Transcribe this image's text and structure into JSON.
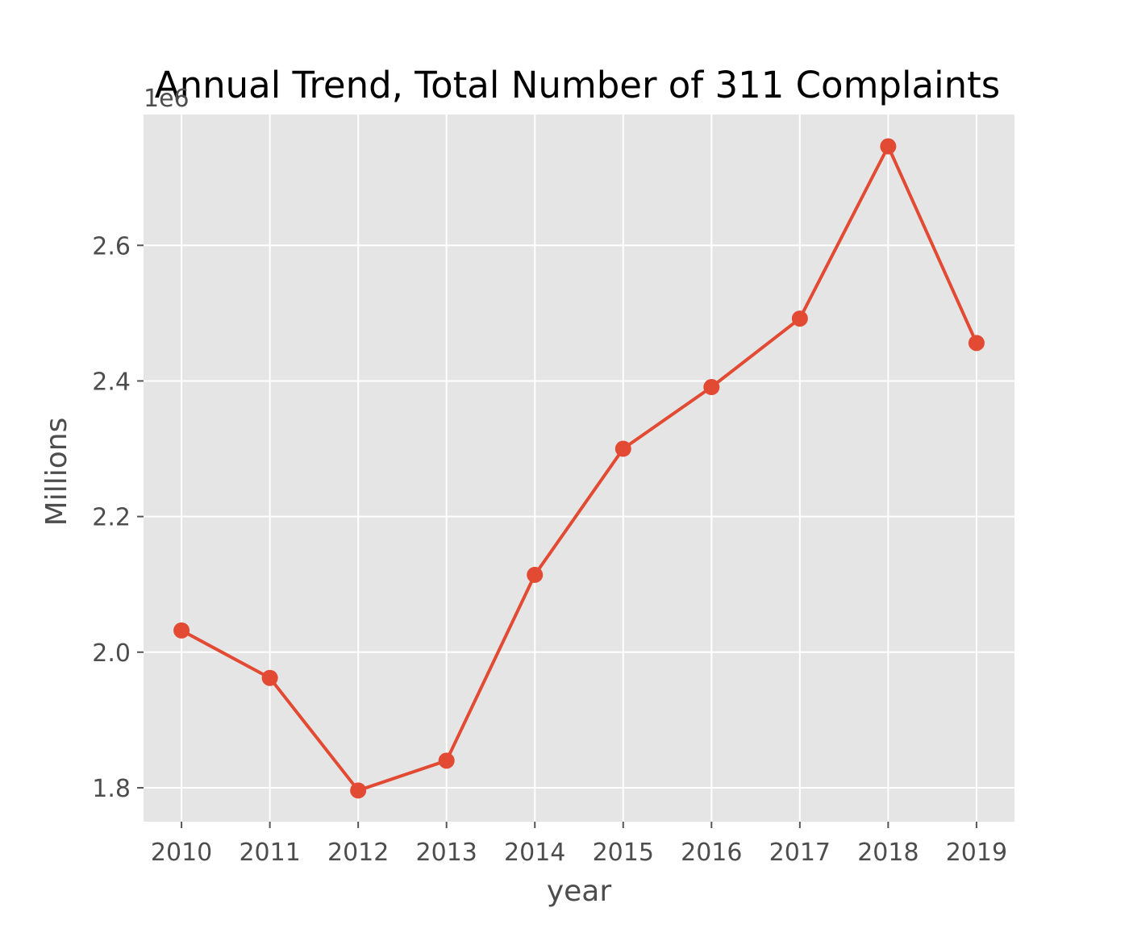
{
  "chart_data": {
    "type": "line",
    "title": "Annual Trend, Total Number of 311 Complaints",
    "xlabel": "year",
    "ylabel": "Millions",
    "y_offset_label": "1e6",
    "x": [
      2010,
      2011,
      2012,
      2013,
      2014,
      2015,
      2016,
      2017,
      2018,
      2019
    ],
    "x_tick_labels": [
      "2010",
      "2011",
      "2012",
      "2013",
      "2014",
      "2015",
      "2016",
      "2017",
      "2018",
      "2019"
    ],
    "y_tick_values": [
      1.8,
      2.0,
      2.2,
      2.4,
      2.6
    ],
    "y_tick_labels": [
      "1.8",
      "2.0",
      "2.2",
      "2.4",
      "2.6"
    ],
    "series": [
      {
        "values": [
          2.032,
          1.962,
          1.796,
          1.84,
          2.114,
          2.3,
          2.391,
          2.492,
          2.746,
          2.456
        ]
      }
    ],
    "xlim": [
      2009.57,
      2019.43
    ],
    "ylim": [
      1.75,
      2.793
    ],
    "grid": true,
    "style": "ggplot",
    "colors": {
      "background": "#e5e5e5",
      "grid": "#ffffff",
      "line": "#e24a33",
      "tick_text": "#4d4d4d",
      "tick_mark": "#555555"
    }
  }
}
